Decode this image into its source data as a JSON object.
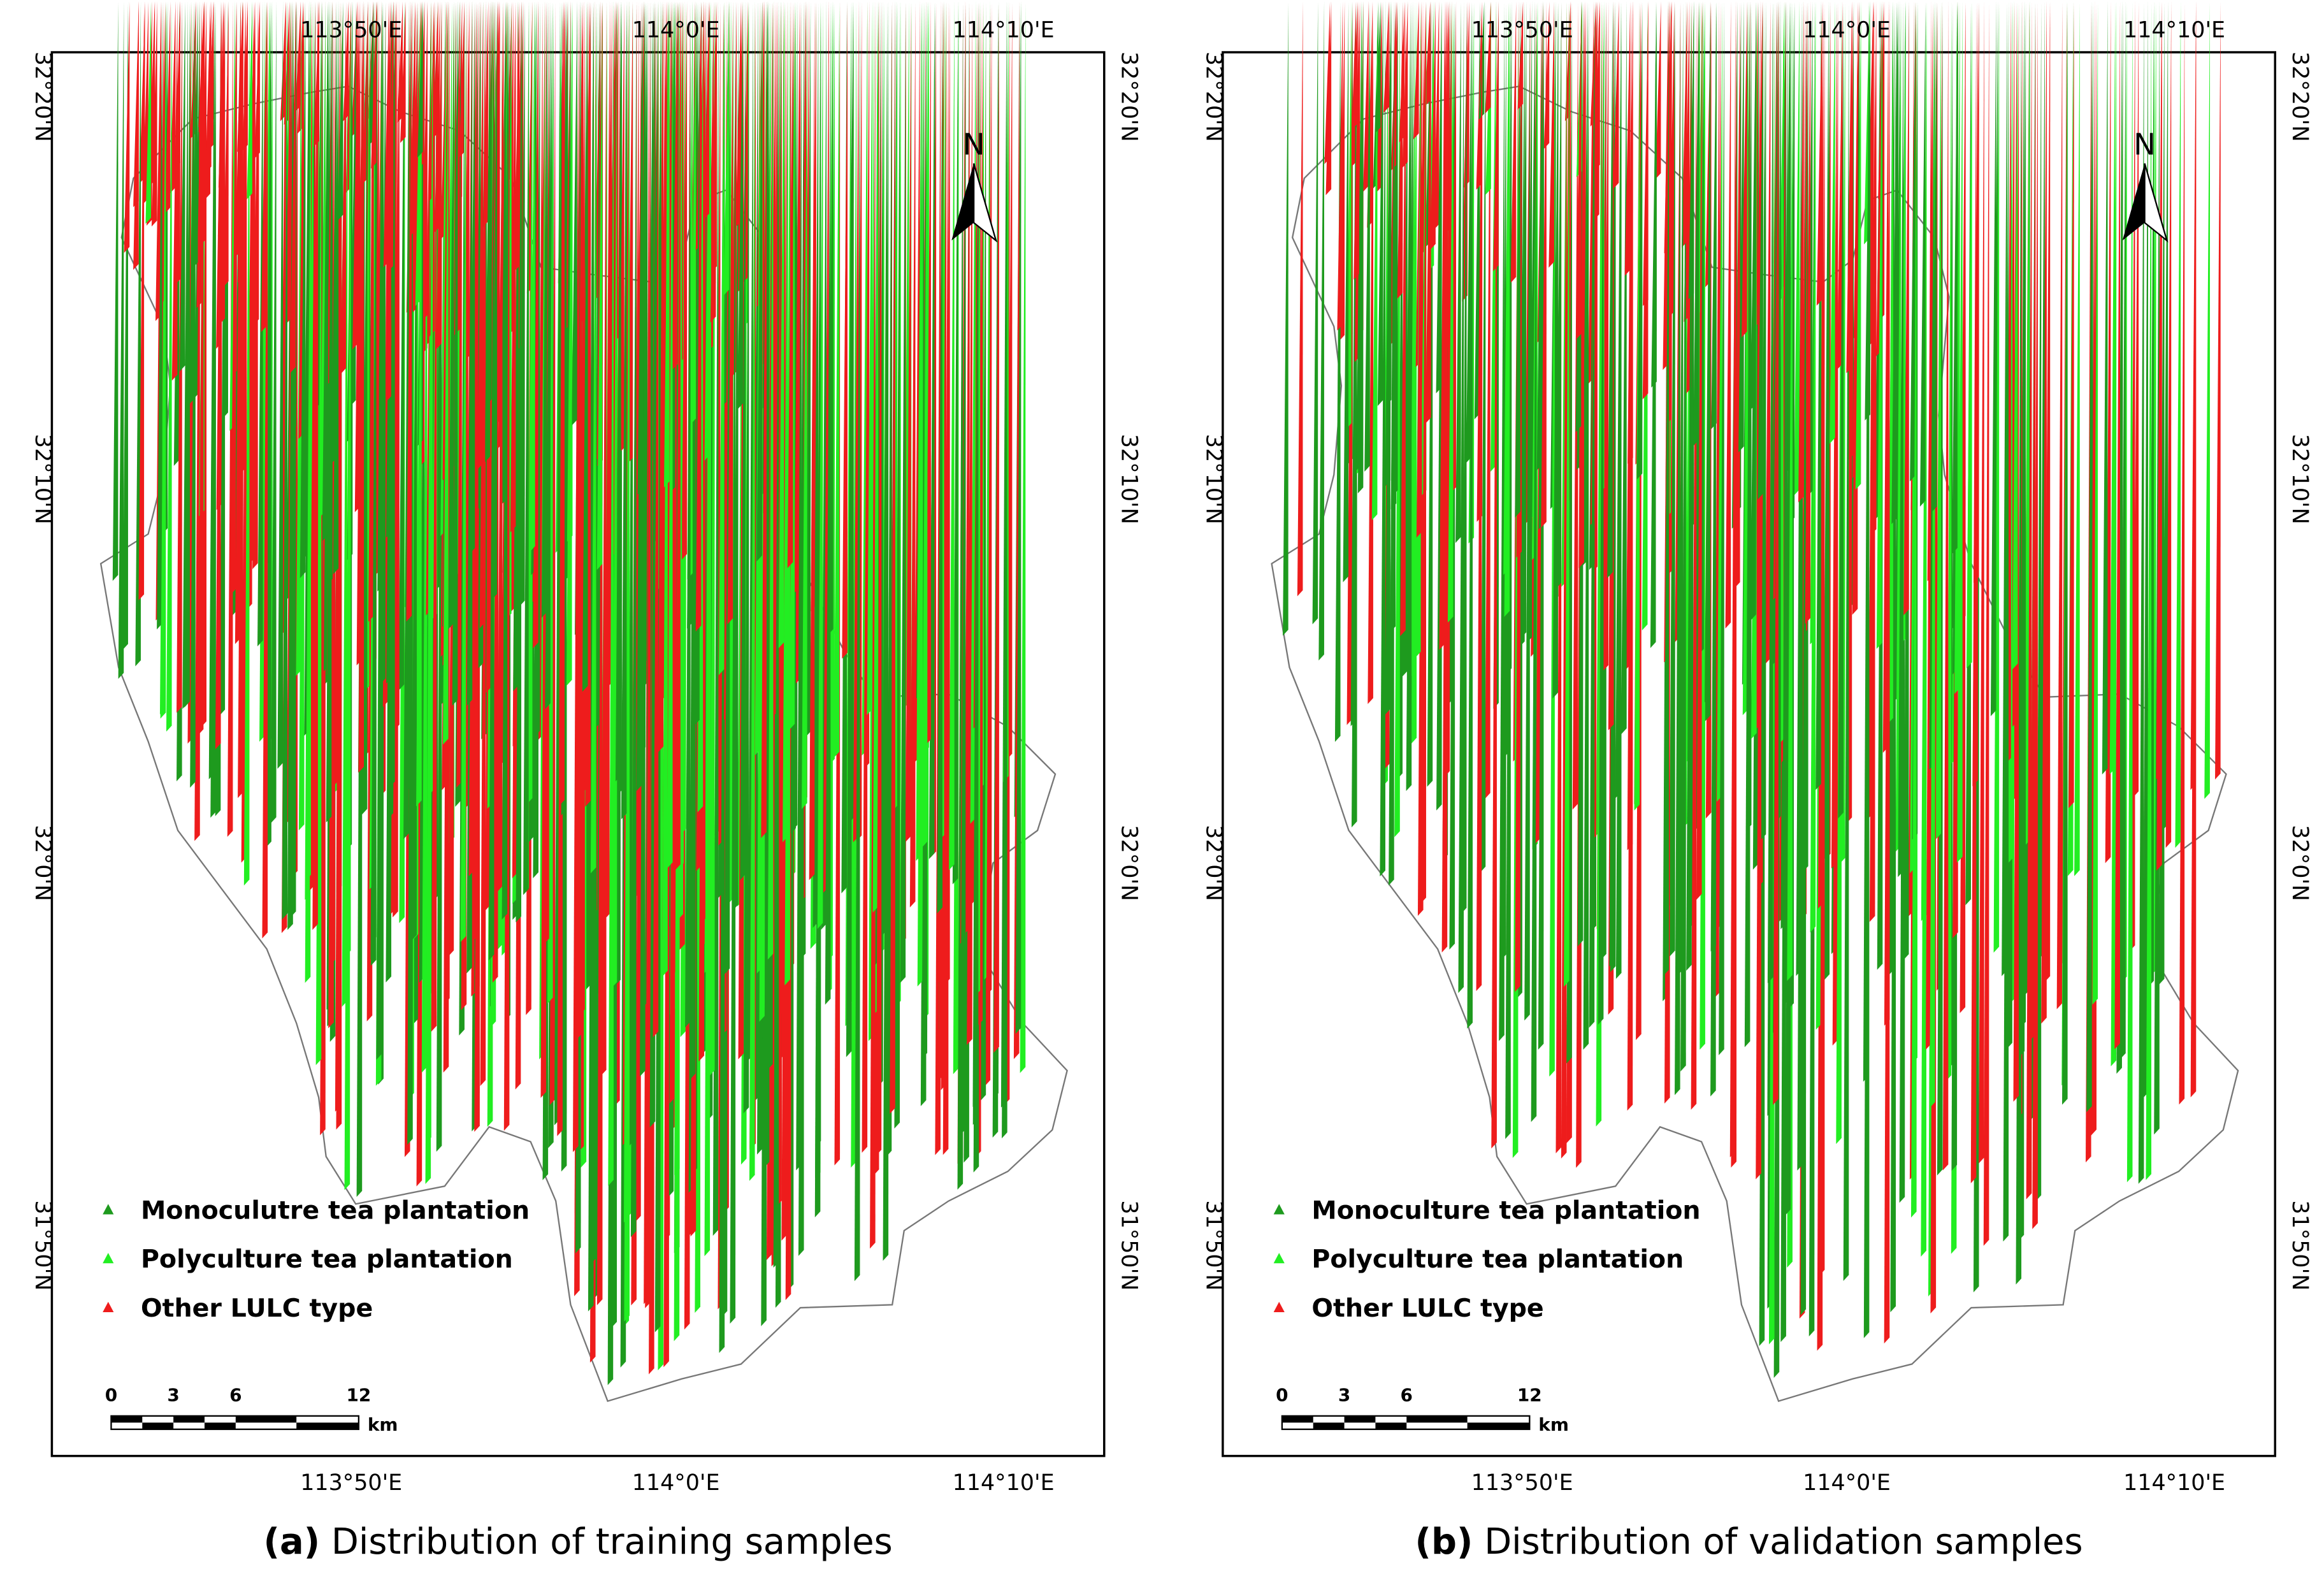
{
  "panels": [
    {
      "caption_label": "(a)",
      "caption": "Distribution of training samples",
      "top_ticks": [
        "113°50'E",
        "114°0'E",
        "114°10'E"
      ],
      "bottom_ticks": [
        "113°50'E",
        "114°0'E",
        "114°10'E"
      ],
      "left_ticks": [
        "32°20'N",
        "32°10'N",
        "32°0'N",
        "31°50'N"
      ],
      "right_ticks": [
        "32°20'N",
        "32°10'N",
        "32°0'N",
        "31°50'N"
      ],
      "north": "N",
      "legend": [
        "Monoculutre tea plantation",
        "Polyculture tea plantation",
        "Other LULC type"
      ],
      "scale": {
        "labels": [
          "0",
          "3",
          "6",
          "12"
        ],
        "unit": "km"
      }
    },
    {
      "caption_label": "(b)",
      "caption": "Distribution of validation samples",
      "top_ticks": [
        "113°50'E",
        "114°0'E",
        "114°10'E"
      ],
      "bottom_ticks": [
        "113°50'E",
        "114°0'E",
        "114°10'E"
      ],
      "left_ticks": [
        "32°20'N",
        "32°10'N",
        "32°0'N",
        "31°50'N"
      ],
      "right_ticks": [
        "32°20'N",
        "32°10'N",
        "32°0'N",
        "31°50'N"
      ],
      "north": "N",
      "legend": [
        "Monoculture tea plantation",
        "Polyculture tea plantation",
        "Other LULC type"
      ],
      "scale": {
        "labels": [
          "0",
          "3",
          "6",
          "12"
        ],
        "unit": "km"
      }
    }
  ]
}
